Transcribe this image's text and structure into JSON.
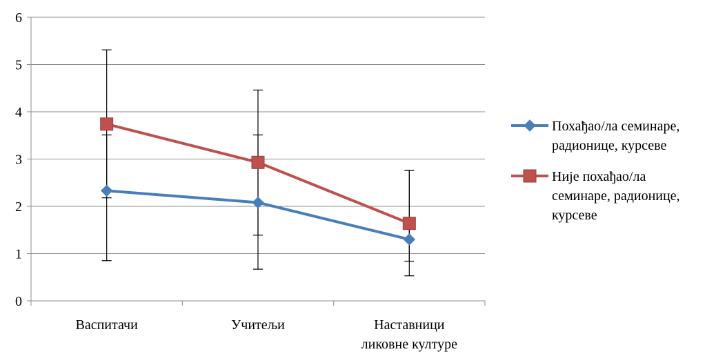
{
  "chart_data": {
    "type": "line",
    "categories": [
      [
        "Васпитачи"
      ],
      [
        "Учитељи"
      ],
      [
        "Наставници",
        "ликовне културе"
      ]
    ],
    "ylim": [
      0,
      6
    ],
    "yticks": [
      0,
      1,
      2,
      3,
      4,
      5,
      6
    ],
    "grid": true,
    "legend_position": "right",
    "series": [
      {
        "name_lines": [
          "Похађао/ла семинаре,",
          "радионице, курсеве"
        ],
        "color": "#4a7ebb",
        "marker": "diamond",
        "values": [
          2.33,
          2.08,
          1.3
        ],
        "error_low": [
          0.85,
          0.67,
          0.53
        ],
        "error_high": [
          3.51,
          3.51,
          2.76
        ]
      },
      {
        "name_lines": [
          "Није похађао/ла",
          "семинаре, радионице,",
          "курсеве"
        ],
        "color": "#c0504d",
        "marker": "square",
        "values": [
          3.74,
          2.93,
          1.64
        ],
        "error_low": [
          2.18,
          1.39,
          0.84
        ],
        "error_high": [
          5.31,
          4.46,
          2.76
        ]
      }
    ]
  }
}
